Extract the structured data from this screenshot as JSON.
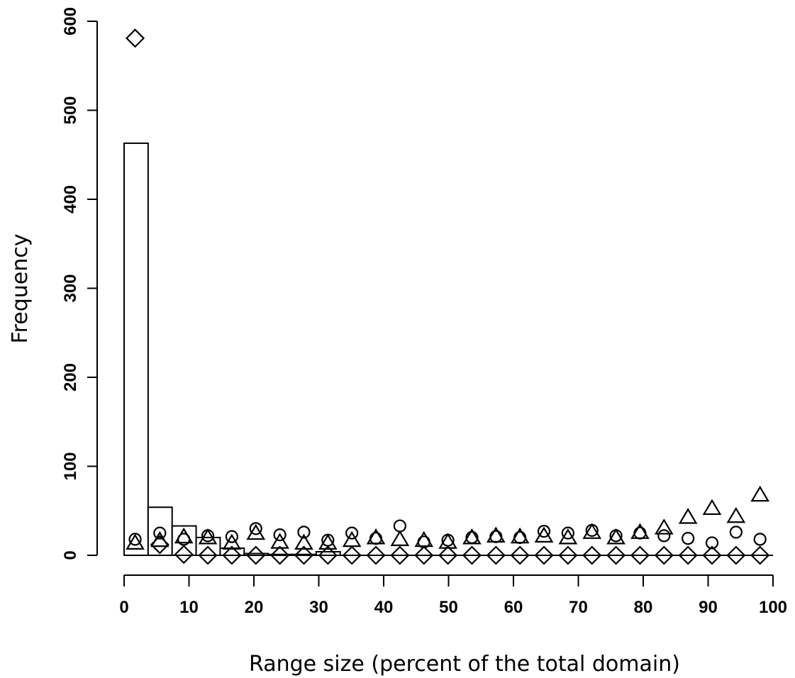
{
  "chart_data": {
    "type": "bar",
    "xlabel": "Range size (percent of the total domain)",
    "ylabel": "Frequency",
    "xlim": [
      0,
      100
    ],
    "ylim": [
      0,
      600
    ],
    "x_ticks": [
      0,
      10,
      20,
      30,
      40,
      50,
      60,
      70,
      80,
      90,
      100
    ],
    "y_ticks": [
      0,
      100,
      200,
      300,
      400,
      500,
      600
    ],
    "grid": false,
    "histogram": {
      "bin_edges": [
        0,
        3.7,
        7.4,
        11.1,
        14.8,
        18.5,
        22.2,
        25.9,
        29.6,
        33.3
      ],
      "values": [
        463,
        54,
        33,
        20,
        8,
        2,
        1,
        1,
        4
      ]
    },
    "series": [
      {
        "marker": "diamond",
        "x": [
          1.7,
          5.5,
          9.2,
          12.9,
          16.6,
          20.3,
          24.0,
          27.7,
          31.4,
          35.1,
          38.8,
          42.5,
          46.2,
          49.9,
          53.6,
          57.3,
          61.0,
          64.7,
          68.4,
          72.1,
          75.8,
          79.5,
          83.2,
          86.9,
          90.6,
          94.3,
          98.0
        ],
        "y": [
          581,
          12,
          1,
          0,
          0,
          0,
          0,
          0,
          0,
          0,
          0,
          0,
          0,
          0,
          0,
          0,
          0,
          0,
          0,
          0,
          0,
          0,
          0,
          0,
          0,
          0,
          0
        ]
      },
      {
        "marker": "circle",
        "x": [
          1.7,
          5.5,
          9.2,
          12.9,
          16.6,
          20.3,
          24.0,
          27.7,
          31.4,
          35.1,
          38.8,
          42.5,
          46.2,
          49.9,
          53.6,
          57.3,
          61.0,
          64.7,
          68.4,
          72.1,
          75.8,
          79.5,
          83.2,
          86.9,
          90.6,
          94.3,
          98.0
        ],
        "y": [
          18,
          25,
          18,
          22,
          21,
          30,
          23,
          26,
          17,
          25,
          19,
          33,
          15,
          17,
          20,
          21,
          20,
          27,
          25,
          28,
          22,
          25,
          22,
          19,
          14,
          26,
          18
        ]
      },
      {
        "marker": "triangle",
        "x": [
          1.7,
          5.5,
          9.2,
          12.9,
          16.6,
          20.3,
          24.0,
          27.7,
          31.4,
          35.1,
          38.8,
          42.5,
          46.2,
          49.9,
          53.6,
          57.3,
          61.0,
          64.7,
          68.4,
          72.1,
          75.8,
          79.5,
          83.2,
          86.9,
          90.6,
          94.3,
          98.0
        ],
        "y": [
          13,
          16,
          20,
          19,
          13,
          24,
          14,
          13,
          13,
          16,
          19,
          17,
          16,
          14,
          19,
          21,
          20,
          21,
          19,
          25,
          19,
          25,
          30,
          42,
          52,
          43,
          67
        ]
      }
    ]
  }
}
